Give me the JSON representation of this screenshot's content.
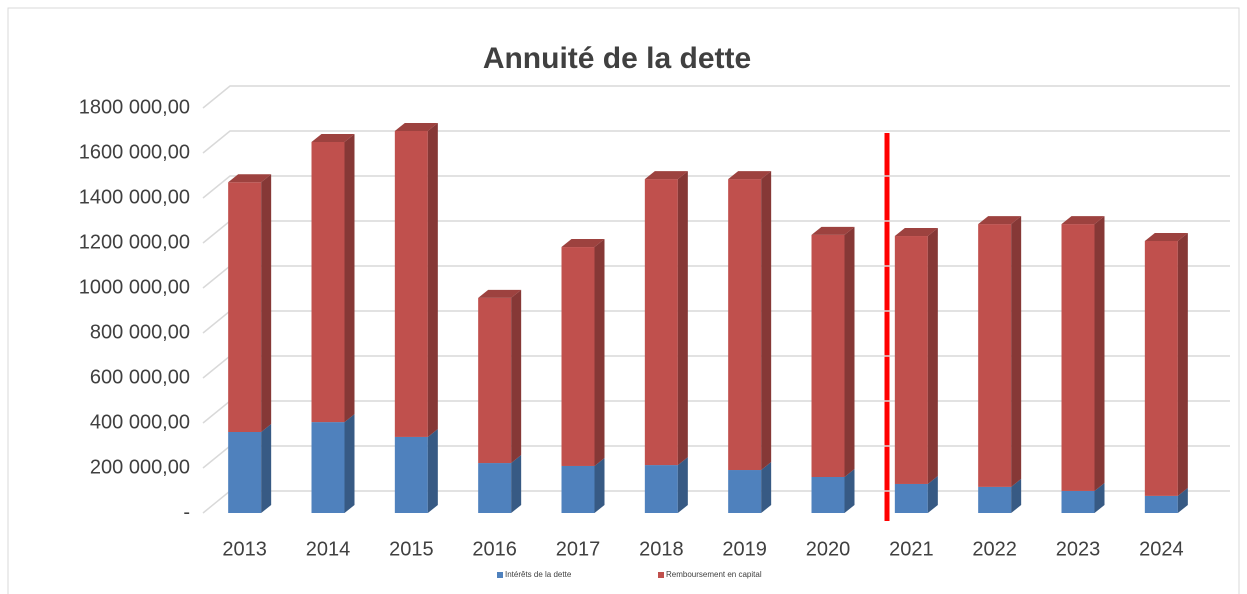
{
  "chart_data": {
    "type": "stacked_bar_3d",
    "title": "Annuité de la dette",
    "categories": [
      "2013",
      "2014",
      "2015",
      "2016",
      "2017",
      "2018",
      "2019",
      "2020",
      "2021",
      "2022",
      "2023",
      "2024"
    ],
    "series": [
      {
        "name": "Intérêts de la dette",
        "color": "#4f81bd",
        "values": [
          360000,
          404000,
          338000,
          222000,
          209000,
          213000,
          191000,
          160000,
          129000,
          116000,
          98000,
          76000
        ]
      },
      {
        "name": "Remboursement en capital",
        "color": "#c0504d",
        "values": [
          1110000,
          1245000,
          1360000,
          734000,
          973000,
          1271000,
          1293000,
          1076000,
          1102000,
          1168000,
          1186000,
          1133000
        ]
      }
    ],
    "ylim": [
      0,
      1800000
    ],
    "yticks": [
      {
        "value": 0,
        "label": "-"
      },
      {
        "value": 200000,
        "label": "200 000,00"
      },
      {
        "value": 400000,
        "label": "400 000,00"
      },
      {
        "value": 600000,
        "label": "600 000,00"
      },
      {
        "value": 800000,
        "label": "800 000,00"
      },
      {
        "value": 1000000,
        "label": "1000 000,00"
      },
      {
        "value": 1200000,
        "label": "1200 000,00"
      },
      {
        "value": 1400000,
        "label": "1400 000,00"
      },
      {
        "value": 1600000,
        "label": "1600 000,00"
      },
      {
        "value": 1800000,
        "label": "1800 000,00"
      }
    ],
    "grid": true,
    "legend": "bottom"
  }
}
